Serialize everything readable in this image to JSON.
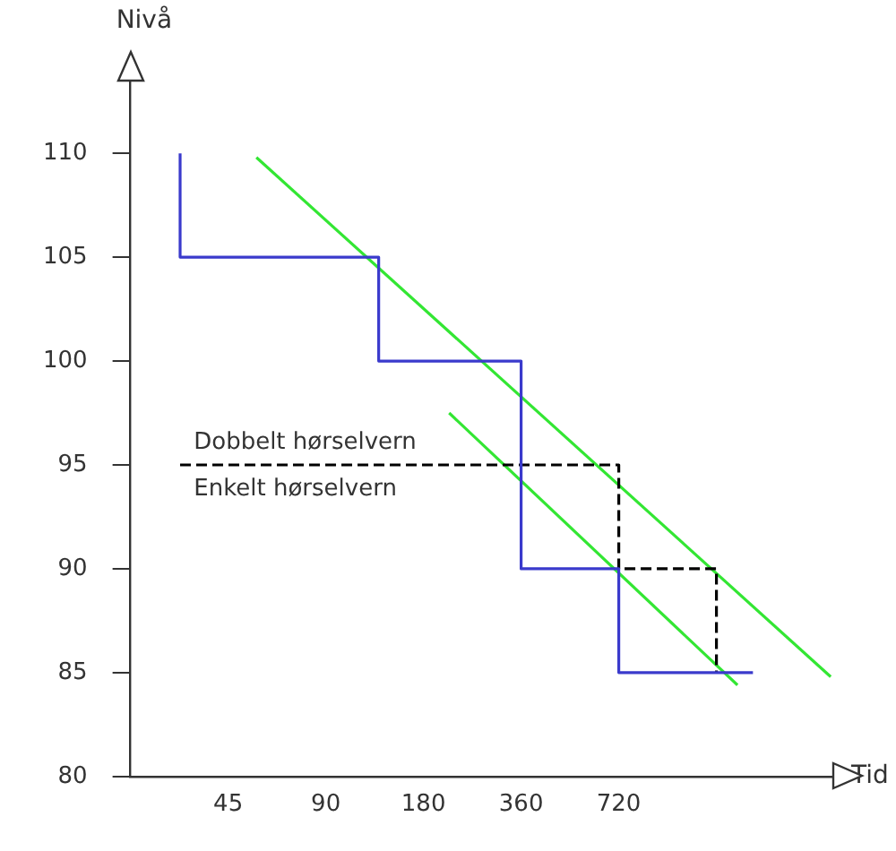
{
  "chart_data": {
    "type": "step",
    "xlabel": "Tid",
    "ylabel": "Nivå",
    "log": "x",
    "xlim": [
      22.5,
      3300
    ],
    "xticks": [
      45,
      90,
      180,
      360,
      720
    ],
    "ylim": [
      80,
      113.5
    ],
    "yticks": [
      80,
      85,
      90,
      95,
      100,
      105,
      110
    ],
    "grid": false,
    "legend": false,
    "marker": "none",
    "series": [
      {
        "color": "#3a3acc",
        "x": [
          32,
          32,
          131,
          360,
          720,
          1866
        ],
        "values": [
          110,
          105,
          100,
          90,
          85,
          85
        ]
      },
      {
        "color": "#000000",
        "line_style": "dashed",
        "x": [
          32,
          720,
          1440
        ],
        "values": [
          95,
          90,
          85
        ]
      },
      {
        "type": "line",
        "color": "#33e633",
        "x": [
          55,
          3240
        ],
        "values": [
          109.8,
          84.8
        ]
      },
      {
        "type": "line",
        "color": "#33e633",
        "x": [
          216,
          1672
        ],
        "values": [
          97.5,
          84.4
        ]
      }
    ],
    "annotations": [
      "Dobbelt hørselvern",
      "Enkelt hørselvern"
    ]
  }
}
